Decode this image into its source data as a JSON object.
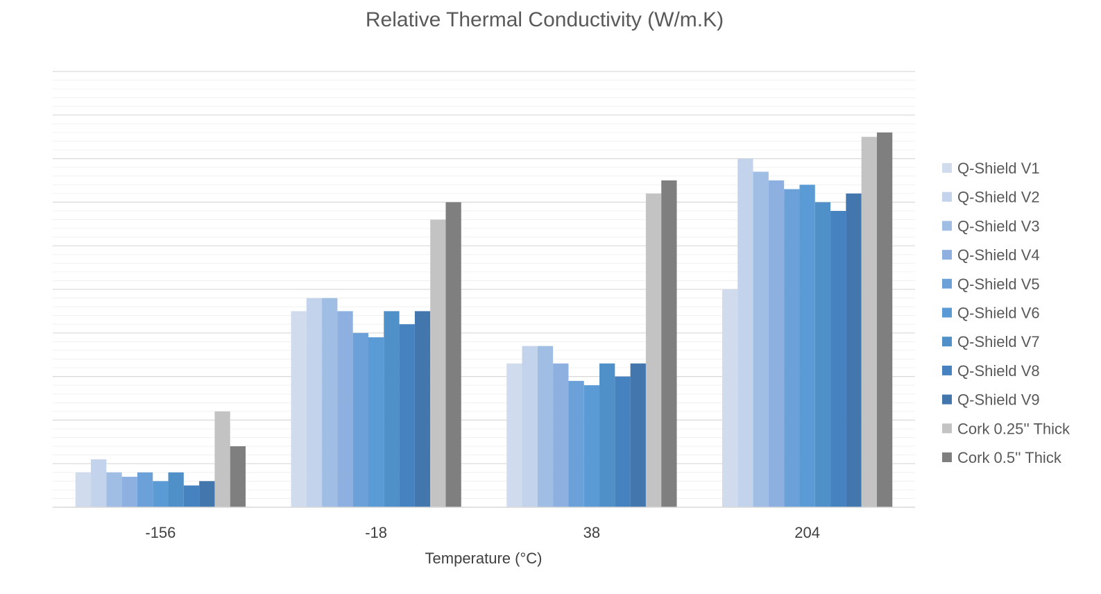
{
  "chart_data": {
    "type": "bar",
    "title": "Relative Thermal Conductivity (W/m.K)",
    "xlabel": "Temperature (°C)",
    "ylabel": "",
    "categories": [
      "-156",
      "-18",
      "38",
      "204"
    ],
    "ylim": [
      0,
      50
    ],
    "grid": true,
    "legend": "right",
    "series": [
      {
        "name": "Q-Shield V1",
        "color": "#d0dcee",
        "values": [
          4.0,
          22.5,
          16.5,
          25.0
        ]
      },
      {
        "name": "Q-Shield V2",
        "color": "#c2d3eb",
        "values": [
          5.5,
          24.0,
          18.5,
          40.0
        ]
      },
      {
        "name": "Q-Shield V3",
        "color": "#a0bde3",
        "values": [
          4.0,
          24.0,
          18.5,
          38.5
        ]
      },
      {
        "name": "Q-Shield V4",
        "color": "#8db0e0",
        "values": [
          3.5,
          22.5,
          16.5,
          37.5
        ]
      },
      {
        "name": "Q-Shield V5",
        "color": "#6ca0d9",
        "values": [
          4.0,
          20.0,
          14.5,
          36.5
        ]
      },
      {
        "name": "Q-Shield V6",
        "color": "#5b9bd5",
        "values": [
          3.0,
          19.5,
          14.0,
          37.0
        ]
      },
      {
        "name": "Q-Shield V7",
        "color": "#5090c8",
        "values": [
          4.0,
          22.5,
          16.5,
          35.0
        ]
      },
      {
        "name": "Q-Shield V8",
        "color": "#4682bf",
        "values": [
          2.5,
          21.0,
          15.0,
          34.0
        ]
      },
      {
        "name": "Q-Shield V9",
        "color": "#4276ad",
        "values": [
          3.0,
          22.5,
          16.5,
          36.0
        ]
      },
      {
        "name": "Cork 0.25'' Thick",
        "color": "#c3c3c3",
        "values": [
          11.0,
          33.0,
          36.0,
          42.5
        ]
      },
      {
        "name": "Cork 0.5'' Thick",
        "color": "#7f7f7f",
        "values": [
          7.0,
          35.0,
          37.5,
          43.0
        ]
      }
    ]
  }
}
